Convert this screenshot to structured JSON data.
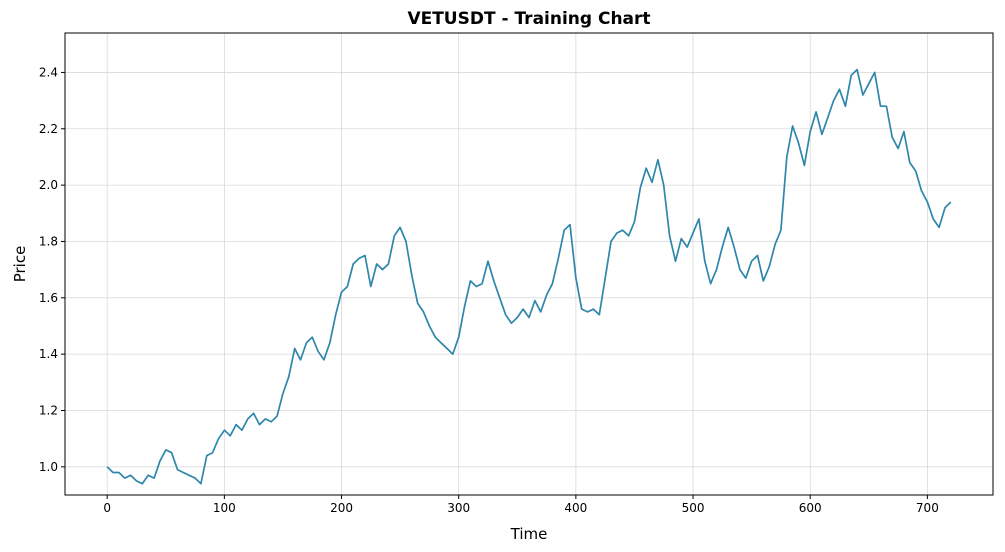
{
  "chart_data": {
    "type": "line",
    "title": "VETUSDT - Training Chart",
    "xlabel": "Time",
    "ylabel": "Price",
    "xlim": [
      -36,
      756
    ],
    "ylim": [
      0.9,
      2.54
    ],
    "grid": true,
    "line_color": "#2e86ab",
    "xticks": [
      0,
      100,
      200,
      300,
      400,
      500,
      600,
      700
    ],
    "xtick_labels": [
      "0",
      "100",
      "200",
      "300",
      "400",
      "500",
      "600",
      "700"
    ],
    "yticks": [
      1.0,
      1.2,
      1.4,
      1.6,
      1.8,
      2.0,
      2.2,
      2.4
    ],
    "ytick_labels": [
      "1.0",
      "1.2",
      "1.4",
      "1.6",
      "1.8",
      "2.0",
      "2.2",
      "2.4"
    ],
    "series": [
      {
        "x": [
          0,
          5,
          10,
          15,
          20,
          25,
          30,
          35,
          40,
          45,
          50,
          55,
          60,
          65,
          70,
          75,
          80,
          85,
          90,
          95,
          100,
          105,
          110,
          115,
          120,
          125,
          130,
          135,
          140,
          145,
          150,
          155,
          160,
          165,
          170,
          175,
          180,
          185,
          190,
          195,
          200,
          205,
          210,
          215,
          220,
          225,
          230,
          235,
          240,
          245,
          250,
          255,
          260,
          265,
          270,
          275,
          280,
          285,
          290,
          295,
          300,
          305,
          310,
          315,
          320,
          325,
          330,
          335,
          340,
          345,
          350,
          355,
          360,
          365,
          370,
          375,
          380,
          385,
          390,
          395,
          400,
          405,
          410,
          415,
          420,
          425,
          430,
          435,
          440,
          445,
          450,
          455,
          460,
          465,
          470,
          475,
          480,
          485,
          490,
          495,
          500,
          505,
          510,
          515,
          520,
          525,
          530,
          535,
          540,
          545,
          550,
          555,
          560,
          565,
          570,
          575,
          580,
          585,
          590,
          595,
          600,
          605,
          610,
          615,
          620,
          625,
          630,
          635,
          640,
          645,
          650,
          655,
          660,
          665,
          670,
          675,
          680,
          685,
          690,
          695,
          700,
          705,
          710,
          715,
          720
        ],
        "y": [
          1.0,
          0.98,
          0.98,
          0.96,
          0.97,
          0.95,
          0.94,
          0.97,
          0.96,
          1.02,
          1.06,
          1.05,
          0.99,
          0.98,
          0.97,
          0.96,
          0.94,
          1.04,
          1.05,
          1.1,
          1.13,
          1.11,
          1.15,
          1.13,
          1.17,
          1.19,
          1.15,
          1.17,
          1.16,
          1.18,
          1.26,
          1.32,
          1.42,
          1.38,
          1.44,
          1.46,
          1.41,
          1.38,
          1.44,
          1.54,
          1.62,
          1.64,
          1.72,
          1.74,
          1.75,
          1.64,
          1.72,
          1.7,
          1.72,
          1.82,
          1.85,
          1.8,
          1.68,
          1.58,
          1.55,
          1.5,
          1.46,
          1.44,
          1.42,
          1.4,
          1.46,
          1.57,
          1.66,
          1.64,
          1.65,
          1.73,
          1.66,
          1.6,
          1.54,
          1.51,
          1.53,
          1.56,
          1.53,
          1.59,
          1.55,
          1.61,
          1.65,
          1.74,
          1.84,
          1.86,
          1.67,
          1.56,
          1.55,
          1.56,
          1.54,
          1.67,
          1.8,
          1.83,
          1.84,
          1.82,
          1.87,
          1.99,
          2.06,
          2.01,
          2.09,
          2.0,
          1.82,
          1.73,
          1.81,
          1.78,
          1.83,
          1.88,
          1.73,
          1.65,
          1.7,
          1.78,
          1.85,
          1.78,
          1.7,
          1.67,
          1.73,
          1.75,
          1.66,
          1.71,
          1.79,
          1.84,
          2.1,
          2.21,
          2.15,
          2.07,
          2.19,
          2.26,
          2.18,
          2.24,
          2.3,
          2.34,
          2.28,
          2.39,
          2.41,
          2.32,
          2.36,
          2.4,
          2.28,
          2.28,
          2.17,
          2.13,
          2.19,
          2.08,
          2.05,
          1.98,
          1.94,
          1.88,
          1.85,
          1.92,
          1.94
        ]
      }
    ]
  }
}
